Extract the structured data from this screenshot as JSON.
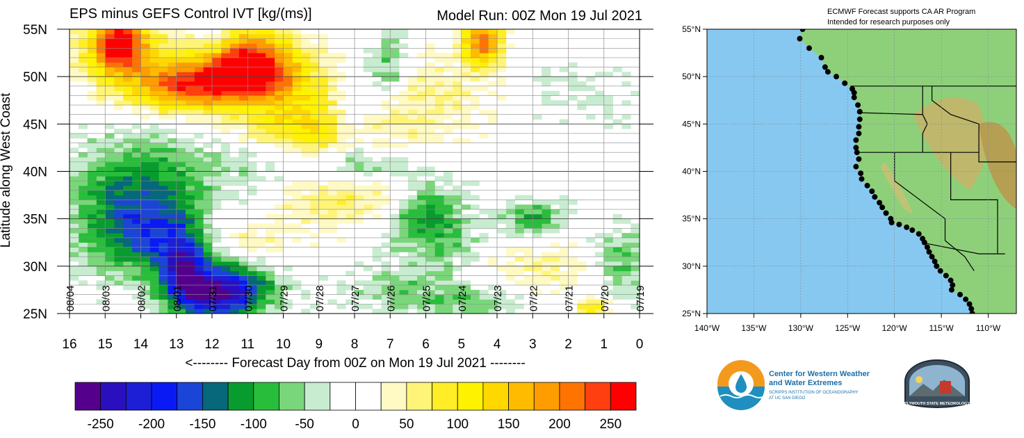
{
  "chart_data": {
    "type": "heatmap",
    "title": "EPS minus GEFS Control IVT [kg/(ms)]",
    "subtitle": "Model Run: 00Z Mon 19 Jul 2021",
    "xlabel": "<-------- Forecast Day from 00Z on Mon 19 Jul 2021 --------",
    "ylabel": "Latitude along West Coast",
    "xlim": [
      16,
      0
    ],
    "ylim": [
      25,
      55
    ],
    "x_ticks": [
      "16",
      "15",
      "14",
      "13",
      "12",
      "11",
      "10",
      "9",
      "8",
      "7",
      "6",
      "5",
      "4",
      "3",
      "2",
      "1",
      "0"
    ],
    "y_ticks": [
      "25N",
      "30N",
      "35N",
      "40N",
      "45N",
      "50N",
      "55N"
    ],
    "date_labels": [
      "08/04",
      "08/03",
      "08/02",
      "08/01",
      "07/31",
      "07/30",
      "07/29",
      "07/28",
      "07/27",
      "07/26",
      "07/25",
      "07/24",
      "07/23",
      "07/22",
      "07/21",
      "07/20",
      "07/19"
    ],
    "grid": true,
    "colorbar": {
      "colors": [
        "#54008c",
        "#2a0fbf",
        "#1c1fd6",
        "#0a1af5",
        "#1b45d6",
        "#06687a",
        "#089c2e",
        "#29bd3c",
        "#7ad67a",
        "#c8ecd0",
        "#ffffff",
        "#ffffff",
        "#fff9c4",
        "#fff477",
        "#ffed26",
        "#fff200",
        "#ffd800",
        "#ffbb00",
        "#ff9d00",
        "#ff7300",
        "#ff3f10",
        "#ff0000"
      ],
      "tick_labels": [
        "-250",
        "-200",
        "-150",
        "-100",
        "-50",
        "0",
        "50",
        "100",
        "150",
        "200",
        "250"
      ]
    },
    "features": [
      {
        "day": 14.6,
        "lat": 53.5,
        "value": 220,
        "w": 0.5,
        "h": 2.0
      },
      {
        "day": 10.9,
        "lat": 51.6,
        "value": 240,
        "w": 0.9,
        "h": 2.5
      },
      {
        "day": 4.4,
        "lat": 53.6,
        "value": 210,
        "w": 0.4,
        "h": 1.8
      },
      {
        "day": 12.0,
        "lat": 49.5,
        "value": 140,
        "w": 1.4,
        "h": 1.8
      },
      {
        "day": 13.0,
        "lat": 48.5,
        "value": 110,
        "w": 1.0,
        "h": 1.8
      },
      {
        "day": 14.5,
        "lat": 52.5,
        "value": 90,
        "w": 1.2,
        "h": 2.8
      },
      {
        "day": 9.6,
        "lat": 47.0,
        "value": 70,
        "w": 1.5,
        "h": 3.2
      },
      {
        "day": 8.0,
        "lat": 44.5,
        "value": 50,
        "w": 1.2,
        "h": 2.6
      },
      {
        "day": 6.0,
        "lat": 48.0,
        "value": 50,
        "w": 1.6,
        "h": 3.0
      },
      {
        "day": 8.8,
        "lat": 37.0,
        "value": 60,
        "w": 1.0,
        "h": 2.2
      },
      {
        "day": 7.0,
        "lat": 38.0,
        "value": 50,
        "w": 0.8,
        "h": 2.0
      },
      {
        "day": 11.2,
        "lat": 33.0,
        "value": 60,
        "w": 1.0,
        "h": 2.0
      },
      {
        "day": 3.0,
        "lat": 30.0,
        "value": 50,
        "w": 1.4,
        "h": 2.0
      },
      {
        "day": 1.3,
        "lat": 25.5,
        "value": 120,
        "w": 0.3,
        "h": 0.7
      },
      {
        "day": 9.6,
        "lat": 44.0,
        "value": 60,
        "w": 1.0,
        "h": 1.6
      },
      {
        "day": 14.0,
        "lat": 38.5,
        "value": -110,
        "w": 1.4,
        "h": 4.0
      },
      {
        "day": 13.7,
        "lat": 33.0,
        "value": -130,
        "w": 1.3,
        "h": 3.0
      },
      {
        "day": 12.8,
        "lat": 30.0,
        "value": -170,
        "w": 0.4,
        "h": 2.2
      },
      {
        "day": 12.0,
        "lat": 27.0,
        "value": -200,
        "w": 0.9,
        "h": 1.8
      },
      {
        "day": 11.3,
        "lat": 28.0,
        "value": -90,
        "w": 0.9,
        "h": 2.2
      },
      {
        "day": 8.0,
        "lat": 46.5,
        "value": -100,
        "w": 0.5,
        "h": 3.0
      },
      {
        "day": 7.0,
        "lat": 51.0,
        "value": -90,
        "w": 0.4,
        "h": 3.0
      },
      {
        "day": 6.0,
        "lat": 36.0,
        "value": -110,
        "w": 0.7,
        "h": 2.2
      },
      {
        "day": 7.5,
        "lat": 40.5,
        "value": -80,
        "w": 1.0,
        "h": 1.4
      },
      {
        "day": 5.5,
        "lat": 32.0,
        "value": -60,
        "w": 1.0,
        "h": 2.0
      },
      {
        "day": 3.0,
        "lat": 35.0,
        "value": -100,
        "w": 0.6,
        "h": 1.3
      },
      {
        "day": 0.5,
        "lat": 30.5,
        "value": -80,
        "w": 0.6,
        "h": 2.5
      },
      {
        "day": 12.0,
        "lat": 54.0,
        "value": -60,
        "w": 0.3,
        "h": 1.3
      },
      {
        "day": 6.5,
        "lat": 27.5,
        "value": -60,
        "w": 1.4,
        "h": 1.6
      },
      {
        "day": 4.5,
        "lat": 26.0,
        "value": -50,
        "w": 1.0,
        "h": 1.2
      },
      {
        "day": 2.0,
        "lat": 48.0,
        "value": -30,
        "w": 1.5,
        "h": 2.5
      },
      {
        "day": 10.5,
        "lat": 41.0,
        "value": -40,
        "w": 1.2,
        "h": 2.0
      }
    ]
  },
  "map": {
    "header_lines": [
      "ECMWF Forecast supports CA AR Program",
      "Intended for research purposes only"
    ],
    "lat_labels": [
      "55°N",
      "50°N",
      "45°N",
      "40°N",
      "35°N",
      "30°N",
      "25°N"
    ],
    "lon_labels": [
      "140°W",
      "135°W",
      "130°W",
      "125°W",
      "120°W",
      "115°W",
      "110°W"
    ],
    "lon_range": [
      -140,
      -107
    ],
    "lat_range": [
      25,
      55
    ],
    "ocean_color": "#87c8f0",
    "land_color": "#8ed07a",
    "coast_points": [
      [
        55,
        -130.1
      ],
      [
        54,
        -130.4
      ],
      [
        53,
        -129.4
      ],
      [
        52,
        -128.1
      ],
      [
        51,
        -127.7
      ],
      [
        50.5,
        -127.4
      ],
      [
        50,
        -126.5
      ],
      [
        49.3,
        -125.6
      ],
      [
        48.7,
        -124.8
      ],
      [
        48.3,
        -124.6
      ],
      [
        47.8,
        -124.6
      ],
      [
        47,
        -124.2
      ],
      [
        46.3,
        -124.0
      ],
      [
        45.5,
        -124.0
      ],
      [
        44.7,
        -124.1
      ],
      [
        44,
        -124.1
      ],
      [
        43.3,
        -124.4
      ],
      [
        42.5,
        -124.4
      ],
      [
        42,
        -124.3
      ],
      [
        41.3,
        -124.1
      ],
      [
        40.5,
        -124.4
      ],
      [
        39.8,
        -123.9
      ],
      [
        39.2,
        -123.8
      ],
      [
        38.5,
        -123.2
      ],
      [
        37.9,
        -122.7
      ],
      [
        37.3,
        -122.4
      ],
      [
        36.7,
        -121.9
      ],
      [
        36.2,
        -121.6
      ],
      [
        35.6,
        -121.2
      ],
      [
        35,
        -120.7
      ],
      [
        34.6,
        -120.6
      ],
      [
        34.4,
        -119.8
      ],
      [
        34.1,
        -119.0
      ],
      [
        33.8,
        -118.4
      ],
      [
        33.4,
        -117.7
      ],
      [
        32.9,
        -117.3
      ],
      [
        32.5,
        -117.1
      ],
      [
        32.0,
        -116.8
      ],
      [
        31.5,
        -116.6
      ],
      [
        31.0,
        -116.3
      ],
      [
        30.5,
        -116.0
      ],
      [
        30.0,
        -115.8
      ],
      [
        29.5,
        -115.4
      ],
      [
        29.0,
        -114.8
      ],
      [
        28.5,
        -114.3
      ],
      [
        28.0,
        -114.1
      ],
      [
        27.5,
        -114.2
      ],
      [
        27.0,
        -113.3
      ],
      [
        26.5,
        -112.7
      ],
      [
        26.0,
        -112.3
      ],
      [
        25.5,
        -112.1
      ],
      [
        25,
        -112.0
      ]
    ],
    "logo1_lines": [
      "Center for Western Weather",
      "and Water Extremes",
      "SCRIPPS INSTITUTION OF OCEANOGRAPHY",
      "AT UC SAN DIEGO"
    ],
    "logo2_text": "PLYMOUTH STATE METEOROLOGY"
  }
}
